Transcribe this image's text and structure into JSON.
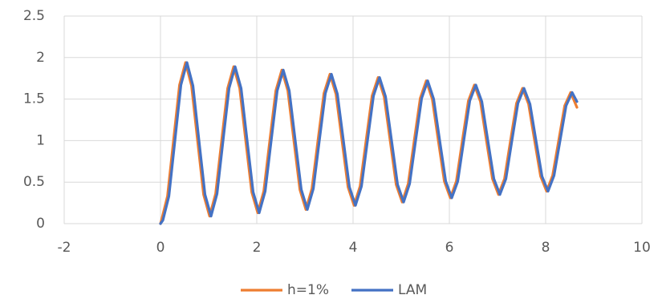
{
  "chart_data": {
    "type": "line",
    "xlim": [
      -2,
      10
    ],
    "xticks": [
      -2,
      0,
      2,
      4,
      6,
      8,
      10
    ],
    "ylim": [
      0,
      2.5
    ],
    "yticks": [
      0,
      0.5,
      1,
      1.5,
      2,
      2.5
    ],
    "grid": true,
    "legend": "bottom",
    "series": [
      {
        "name": "h=1%",
        "color": "#ED7D31",
        "x": [
          0,
          0.02,
          0.145,
          0.27,
          0.395,
          0.52,
          0.645,
          0.77,
          0.895,
          1.02,
          1.145,
          1.27,
          1.395,
          1.52,
          1.645,
          1.77,
          1.895,
          2.02,
          2.145,
          2.27,
          2.395,
          2.52,
          2.645,
          2.77,
          2.895,
          3.02,
          3.145,
          3.27,
          3.395,
          3.52,
          3.645,
          3.77,
          3.895,
          4.02,
          4.145,
          4.27,
          4.395,
          4.52,
          4.645,
          4.77,
          4.895,
          5.02,
          5.145,
          5.27,
          5.395,
          5.52,
          5.645,
          5.77,
          5.895,
          6.02,
          6.145,
          6.27,
          6.395,
          6.52,
          6.645,
          6.77,
          6.895,
          7.02,
          7.145,
          7.27,
          7.395,
          7.52,
          7.645,
          7.77,
          7.895,
          8.02,
          8.145,
          8.27,
          8.395,
          8.52,
          8.65
        ],
        "values": [
          0,
          0.04,
          0.33,
          1,
          1.67,
          1.94,
          1.66,
          1,
          0.35,
          0.09,
          0.36,
          1,
          1.63,
          1.89,
          1.63,
          1,
          0.38,
          0.13,
          0.39,
          1,
          1.6,
          1.85,
          1.6,
          1,
          0.41,
          0.17,
          0.42,
          1,
          1.57,
          1.8,
          1.56,
          1,
          0.44,
          0.22,
          0.45,
          1,
          1.54,
          1.76,
          1.53,
          1,
          0.47,
          0.26,
          0.48,
          1,
          1.51,
          1.72,
          1.5,
          1,
          0.51,
          0.31,
          0.51,
          1,
          1.48,
          1.67,
          1.47,
          1,
          0.54,
          0.35,
          0.54,
          1,
          1.45,
          1.63,
          1.44,
          1,
          0.57,
          0.39,
          0.58,
          1,
          1.42,
          1.58,
          1.4
        ]
      },
      {
        "name": "LAM",
        "color": "#4472C4",
        "x": [
          0,
          0.05,
          0.175,
          0.3,
          0.425,
          0.55,
          0.675,
          0.8,
          0.925,
          1.05,
          1.175,
          1.3,
          1.425,
          1.55,
          1.675,
          1.8,
          1.925,
          2.05,
          2.175,
          2.3,
          2.425,
          2.55,
          2.675,
          2.8,
          2.925,
          3.05,
          3.175,
          3.3,
          3.425,
          3.55,
          3.675,
          3.8,
          3.925,
          4.05,
          4.175,
          4.3,
          4.425,
          4.55,
          4.675,
          4.8,
          4.925,
          5.05,
          5.175,
          5.3,
          5.425,
          5.55,
          5.675,
          5.8,
          5.925,
          6.05,
          6.175,
          6.3,
          6.425,
          6.55,
          6.675,
          6.8,
          6.925,
          7.05,
          7.175,
          7.3,
          7.425,
          7.55,
          7.675,
          7.8,
          7.925,
          8.05,
          8.175,
          8.3,
          8.425,
          8.55,
          8.65
        ],
        "values": [
          0,
          0.04,
          0.33,
          1,
          1.67,
          1.94,
          1.66,
          1,
          0.35,
          0.09,
          0.36,
          1,
          1.63,
          1.89,
          1.63,
          1,
          0.38,
          0.13,
          0.39,
          1,
          1.6,
          1.85,
          1.6,
          1,
          0.41,
          0.17,
          0.42,
          1,
          1.57,
          1.8,
          1.56,
          1,
          0.44,
          0.22,
          0.45,
          1,
          1.54,
          1.76,
          1.53,
          1,
          0.47,
          0.26,
          0.48,
          1,
          1.51,
          1.72,
          1.5,
          1,
          0.51,
          0.31,
          0.51,
          1,
          1.48,
          1.67,
          1.47,
          1,
          0.54,
          0.35,
          0.54,
          1,
          1.45,
          1.63,
          1.44,
          1,
          0.57,
          0.39,
          0.58,
          1,
          1.42,
          1.58,
          1.47
        ]
      }
    ]
  }
}
